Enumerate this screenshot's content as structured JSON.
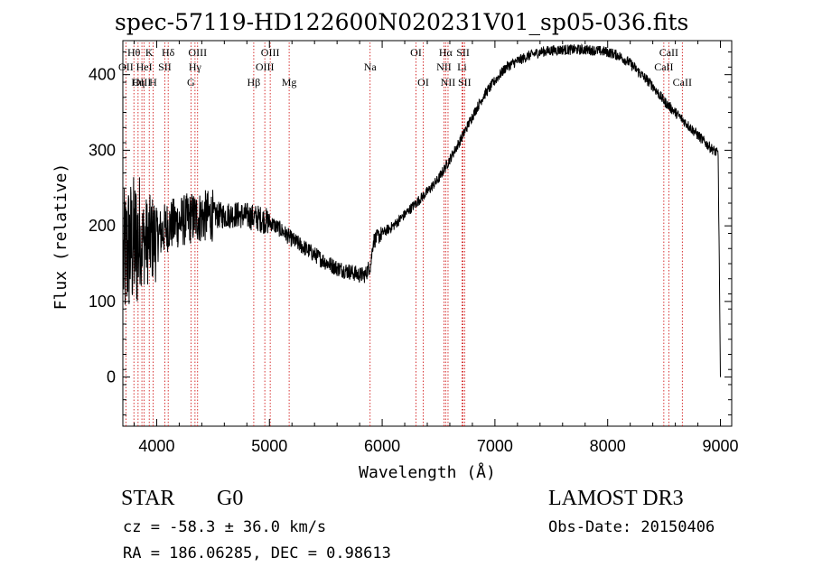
{
  "chart_data": {
    "type": "line",
    "title": "spec-57119-HD122600N020231V01_sp05-036.fits",
    "xlabel": "Wavelength (Å)",
    "ylabel": "Flux (relative)",
    "xlim": [
      3700,
      9100
    ],
    "ylim": [
      -65,
      445
    ],
    "xticks": [
      4000,
      5000,
      6000,
      7000,
      8000,
      9000
    ],
    "yticks": [
      0,
      100,
      200,
      300,
      400
    ],
    "grid": false,
    "series": [
      {
        "name": "flux",
        "anchors_x": [
          3700,
          3750,
          3800,
          3850,
          3900,
          3950,
          4000,
          4100,
          4200,
          4300,
          4400,
          4500,
          4600,
          4700,
          4800,
          4900,
          5000,
          5100,
          5200,
          5300,
          5400,
          5500,
          5600,
          5700,
          5800,
          5850,
          5900,
          5920,
          6000,
          6100,
          6200,
          6300,
          6400,
          6500,
          6600,
          6700,
          6800,
          6900,
          7000,
          7100,
          7200,
          7300,
          7400,
          7500,
          7600,
          7700,
          7800,
          7900,
          8000,
          8100,
          8200,
          8300,
          8400,
          8500,
          8600,
          8700,
          8800,
          8900,
          8980,
          9000
        ],
        "anchors_y": [
          150,
          170,
          175,
          180,
          180,
          182,
          185,
          200,
          205,
          210,
          212,
          214,
          214,
          215,
          213,
          210,
          205,
          195,
          182,
          172,
          162,
          152,
          144,
          140,
          135,
          135,
          150,
          180,
          190,
          200,
          215,
          230,
          245,
          262,
          288,
          315,
          345,
          372,
          392,
          410,
          418,
          425,
          430,
          432,
          433,
          433,
          433,
          432,
          430,
          425,
          415,
          400,
          385,
          365,
          350,
          335,
          320,
          305,
          295,
          0
        ]
      }
    ],
    "spectral_lines": [
      {
        "label": "Hθ",
        "x": 3798,
        "row": 0
      },
      {
        "label": "OII",
        "x": 3727,
        "row": 1
      },
      {
        "label": "OIII",
        "x": 3869,
        "row": 2
      },
      {
        "label": "K",
        "x": 3934,
        "row": 0
      },
      {
        "label": "HeI",
        "x": 3889,
        "row": 1
      },
      {
        "label": "Hη",
        "x": 3835,
        "row": 2
      },
      {
        "label": "H",
        "x": 3968,
        "row": 2
      },
      {
        "label": "SII",
        "x": 4072,
        "row": 1
      },
      {
        "label": "Hδ",
        "x": 4102,
        "row": 0
      },
      {
        "label": "OIII",
        "x": 4363,
        "row": 0
      },
      {
        "label": "Hγ",
        "x": 4340,
        "row": 1
      },
      {
        "label": "G",
        "x": 4304,
        "row": 2
      },
      {
        "label": "Hβ",
        "x": 4861,
        "row": 2
      },
      {
        "label": "OIII",
        "x": 4959,
        "row": 1
      },
      {
        "label": "OIII",
        "x": 5007,
        "row": 0
      },
      {
        "label": "Mg",
        "x": 5175,
        "row": 2
      },
      {
        "label": "Na",
        "x": 5893,
        "row": 1
      },
      {
        "label": "OI",
        "x": 6300,
        "row": 0
      },
      {
        "label": "OI",
        "x": 6364,
        "row": 2
      },
      {
        "label": "Hα",
        "x": 6563,
        "row": 0
      },
      {
        "label": "NII",
        "x": 6548,
        "row": 1
      },
      {
        "label": "NII",
        "x": 6584,
        "row": 2
      },
      {
        "label": "SII",
        "x": 6717,
        "row": 0
      },
      {
        "label": "Li",
        "x": 6708,
        "row": 1
      },
      {
        "label": "SII",
        "x": 6731,
        "row": 2
      },
      {
        "label": "CaII",
        "x": 8542,
        "row": 0
      },
      {
        "label": "CaII",
        "x": 8498,
        "row": 1
      },
      {
        "label": "CaII",
        "x": 8662,
        "row": 2
      }
    ],
    "annotations": {
      "class": "STAR",
      "subclass": "G0",
      "survey": "LAMOST DR3",
      "cz": "cz = -58.3 ± 36.0 km/s",
      "obs_date": "Obs-Date: 20150406",
      "coords": "RA = 186.06285, DEC =    0.98613"
    },
    "colors": {
      "line": "#000000",
      "marker": "#cc0000",
      "axis": "#000000"
    }
  }
}
